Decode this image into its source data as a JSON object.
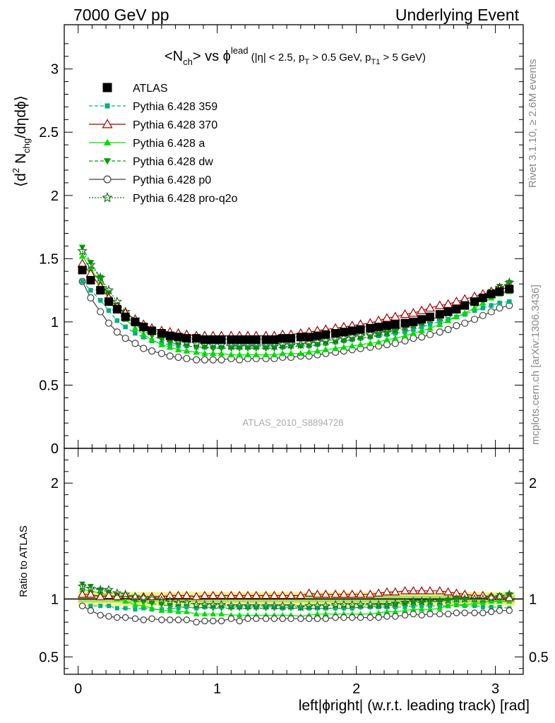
{
  "header": {
    "left": "7000 GeV pp",
    "right": "Underlying Event"
  },
  "side_labels": {
    "rivet": "Rivet 3.1.10, ≥ 2.6M events",
    "mcplots": "mcplots.cern.ch [arXiv:1306.3436]"
  },
  "watermark": "ATLAS_2010_S8894728",
  "title": {
    "a": "<N",
    "a_sub": "ch",
    "b": "> vs ϕ",
    "b_sup": "lead",
    "c": " (|η| < 2.5, p",
    "c_sub": "T",
    "d": " > 0.5 GeV, p",
    "d_sub": "T1",
    "e": " > 5 GeV)"
  },
  "ylabel_main": {
    "a": "⟨d",
    "sup": "2",
    "b": " N",
    "sub": "chg",
    "c": "/dηdϕ⟩"
  },
  "ylabel_ratio": "Ratio to ATLAS",
  "xlabel": "left|ϕright| (w.r.t. leading track) [rad]",
  "chart_data": {
    "type": "line",
    "x": [
      0.03,
      0.09,
      0.16,
      0.22,
      0.28,
      0.34,
      0.41,
      0.47,
      0.53,
      0.6,
      0.66,
      0.72,
      0.78,
      0.85,
      0.91,
      0.97,
      1.03,
      1.1,
      1.16,
      1.22,
      1.28,
      1.35,
      1.41,
      1.47,
      1.53,
      1.6,
      1.66,
      1.72,
      1.78,
      1.85,
      1.91,
      1.97,
      2.03,
      2.1,
      2.16,
      2.22,
      2.28,
      2.35,
      2.41,
      2.47,
      2.53,
      2.6,
      2.66,
      2.72,
      2.78,
      2.85,
      2.91,
      2.97,
      3.03,
      3.1
    ],
    "xlim": [
      -0.1,
      3.2
    ],
    "xticks": [
      "0",
      "1",
      "2",
      "3"
    ],
    "main": {
      "ylim": [
        0,
        3.35
      ],
      "yticks": [
        "0",
        "0.5",
        "1",
        "1.5",
        "2",
        "2.5",
        "3"
      ],
      "series": [
        {
          "name": "ATLAS",
          "color": "#000000",
          "marker": "square-filled",
          "style": "none",
          "values": [
            1.41,
            1.33,
            1.25,
            1.16,
            1.1,
            1.04,
            1.0,
            0.96,
            0.93,
            0.91,
            0.89,
            0.88,
            0.87,
            0.87,
            0.86,
            0.86,
            0.86,
            0.86,
            0.86,
            0.86,
            0.86,
            0.86,
            0.86,
            0.87,
            0.87,
            0.88,
            0.88,
            0.89,
            0.9,
            0.91,
            0.92,
            0.93,
            0.94,
            0.95,
            0.96,
            0.97,
            0.98,
            0.99,
            1.0,
            1.02,
            1.04,
            1.06,
            1.08,
            1.1,
            1.13,
            1.16,
            1.19,
            1.22,
            1.24,
            1.26
          ]
        },
        {
          "name": "Pythia 6.428 359",
          "color": "#00b080",
          "marker": "square-small",
          "style": "dashed",
          "values": [
            1.32,
            1.25,
            1.17,
            1.09,
            1.01,
            0.96,
            0.91,
            0.88,
            0.85,
            0.83,
            0.82,
            0.81,
            0.81,
            0.8,
            0.8,
            0.8,
            0.8,
            0.8,
            0.8,
            0.8,
            0.8,
            0.8,
            0.8,
            0.8,
            0.81,
            0.81,
            0.81,
            0.82,
            0.83,
            0.84,
            0.85,
            0.86,
            0.87,
            0.88,
            0.89,
            0.9,
            0.91,
            0.92,
            0.94,
            0.96,
            0.98,
            1.0,
            1.02,
            1.04,
            1.06,
            1.09,
            1.11,
            1.13,
            1.15,
            1.16
          ]
        },
        {
          "name": "Pythia 6.428 370",
          "color": "#a00000",
          "marker": "triangle-open",
          "style": "solid",
          "values": [
            1.46,
            1.38,
            1.28,
            1.19,
            1.12,
            1.07,
            1.02,
            0.98,
            0.95,
            0.93,
            0.92,
            0.91,
            0.9,
            0.89,
            0.89,
            0.89,
            0.89,
            0.89,
            0.89,
            0.89,
            0.89,
            0.89,
            0.89,
            0.9,
            0.9,
            0.91,
            0.92,
            0.93,
            0.94,
            0.95,
            0.96,
            0.97,
            0.98,
            0.99,
            1.01,
            1.03,
            1.04,
            1.06,
            1.07,
            1.09,
            1.11,
            1.13,
            1.14,
            1.16,
            1.18,
            1.2,
            1.22,
            1.24,
            1.26,
            1.27
          ]
        },
        {
          "name": "Pythia 6.428 a",
          "color": "#00dd00",
          "marker": "triangle-filled",
          "style": "solid",
          "values": [
            1.52,
            1.42,
            1.31,
            1.2,
            1.1,
            1.02,
            0.95,
            0.9,
            0.86,
            0.82,
            0.8,
            0.78,
            0.77,
            0.76,
            0.75,
            0.75,
            0.75,
            0.74,
            0.74,
            0.74,
            0.74,
            0.74,
            0.74,
            0.75,
            0.75,
            0.75,
            0.76,
            0.77,
            0.78,
            0.79,
            0.8,
            0.81,
            0.82,
            0.83,
            0.84,
            0.86,
            0.87,
            0.89,
            0.91,
            0.93,
            0.95,
            0.98,
            1.01,
            1.04,
            1.07,
            1.11,
            1.15,
            1.19,
            1.22,
            1.24
          ]
        },
        {
          "name": "Pythia 6.428 dw",
          "color": "#00a000",
          "marker": "triangle-down-filled",
          "style": "dashed",
          "values": [
            1.59,
            1.47,
            1.35,
            1.23,
            1.13,
            1.05,
            0.98,
            0.93,
            0.89,
            0.86,
            0.84,
            0.82,
            0.81,
            0.8,
            0.8,
            0.79,
            0.79,
            0.79,
            0.79,
            0.79,
            0.79,
            0.79,
            0.79,
            0.8,
            0.8,
            0.81,
            0.81,
            0.82,
            0.83,
            0.84,
            0.85,
            0.86,
            0.87,
            0.88,
            0.9,
            0.91,
            0.93,
            0.95,
            0.97,
            0.99,
            1.02,
            1.04,
            1.07,
            1.1,
            1.13,
            1.17,
            1.2,
            1.24,
            1.28,
            1.31
          ]
        },
        {
          "name": "Pythia 6.428 p0",
          "color": "#404040",
          "marker": "circle-open",
          "style": "solid",
          "values": [
            1.32,
            1.19,
            1.08,
            0.99,
            0.92,
            0.87,
            0.83,
            0.79,
            0.77,
            0.75,
            0.73,
            0.72,
            0.71,
            0.7,
            0.7,
            0.7,
            0.7,
            0.71,
            0.7,
            0.71,
            0.71,
            0.71,
            0.71,
            0.72,
            0.72,
            0.73,
            0.73,
            0.74,
            0.75,
            0.76,
            0.77,
            0.78,
            0.79,
            0.8,
            0.81,
            0.82,
            0.83,
            0.85,
            0.87,
            0.88,
            0.9,
            0.92,
            0.94,
            0.97,
            0.99,
            1.02,
            1.05,
            1.08,
            1.11,
            1.13
          ]
        },
        {
          "name": "Pythia 6.428 pro-q2o",
          "color": "#207020",
          "marker": "star-open",
          "style": "dotted",
          "values": [
            1.56,
            1.45,
            1.35,
            1.25,
            1.16,
            1.08,
            1.02,
            0.97,
            0.93,
            0.9,
            0.87,
            0.85,
            0.84,
            0.83,
            0.82,
            0.82,
            0.82,
            0.81,
            0.81,
            0.81,
            0.81,
            0.81,
            0.81,
            0.82,
            0.82,
            0.82,
            0.83,
            0.84,
            0.85,
            0.86,
            0.87,
            0.88,
            0.89,
            0.9,
            0.91,
            0.92,
            0.94,
            0.96,
            0.98,
            1.0,
            1.02,
            1.04,
            1.07,
            1.1,
            1.13,
            1.16,
            1.19,
            1.23,
            1.27,
            1.31
          ]
        }
      ]
    },
    "ratio": {
      "ylim": [
        0.35,
        2.3
      ],
      "yticks": [
        "0.5",
        "1",
        "2"
      ],
      "band": {
        "inner": 0.03,
        "outer": 0.06,
        "inner_color": "#a8e06a",
        "outer_color": "#f2f28a"
      },
      "series": [
        {
          "name": "Pythia 6.428 359",
          "values": [
            0.94,
            0.94,
            0.94,
            0.94,
            0.92,
            0.92,
            0.91,
            0.92,
            0.91,
            0.91,
            0.92,
            0.92,
            0.93,
            0.92,
            0.93,
            0.93,
            0.93,
            0.93,
            0.93,
            0.93,
            0.93,
            0.93,
            0.93,
            0.92,
            0.93,
            0.92,
            0.92,
            0.92,
            0.92,
            0.92,
            0.92,
            0.92,
            0.93,
            0.93,
            0.93,
            0.93,
            0.93,
            0.93,
            0.94,
            0.94,
            0.94,
            0.94,
            0.94,
            0.95,
            0.94,
            0.94,
            0.93,
            0.93,
            0.93,
            0.92
          ]
        },
        {
          "name": "Pythia 6.428 370",
          "values": [
            1.04,
            1.04,
            1.02,
            1.03,
            1.02,
            1.03,
            1.02,
            1.02,
            1.02,
            1.02,
            1.03,
            1.03,
            1.03,
            1.02,
            1.03,
            1.03,
            1.03,
            1.03,
            1.03,
            1.03,
            1.03,
            1.03,
            1.03,
            1.03,
            1.03,
            1.03,
            1.05,
            1.04,
            1.04,
            1.04,
            1.04,
            1.04,
            1.04,
            1.04,
            1.05,
            1.06,
            1.06,
            1.07,
            1.07,
            1.07,
            1.07,
            1.07,
            1.06,
            1.05,
            1.04,
            1.03,
            1.03,
            1.02,
            1.02,
            1.01
          ]
        },
        {
          "name": "Pythia 6.428 a",
          "values": [
            1.08,
            1.07,
            1.05,
            1.03,
            1.0,
            0.98,
            0.95,
            0.94,
            0.92,
            0.9,
            0.9,
            0.89,
            0.89,
            0.87,
            0.87,
            0.87,
            0.87,
            0.86,
            0.86,
            0.86,
            0.86,
            0.86,
            0.86,
            0.86,
            0.86,
            0.85,
            0.86,
            0.87,
            0.87,
            0.87,
            0.87,
            0.87,
            0.87,
            0.87,
            0.88,
            0.89,
            0.89,
            0.9,
            0.91,
            0.91,
            0.91,
            0.92,
            0.94,
            0.95,
            0.95,
            0.96,
            0.97,
            0.98,
            0.98,
            0.98
          ]
        },
        {
          "name": "Pythia 6.428 dw",
          "values": [
            1.13,
            1.11,
            1.08,
            1.06,
            1.03,
            1.01,
            0.98,
            0.97,
            0.96,
            0.95,
            0.94,
            0.93,
            0.93,
            0.92,
            0.93,
            0.92,
            0.92,
            0.92,
            0.92,
            0.92,
            0.92,
            0.92,
            0.92,
            0.92,
            0.92,
            0.92,
            0.92,
            0.92,
            0.92,
            0.92,
            0.92,
            0.92,
            0.93,
            0.93,
            0.94,
            0.94,
            0.95,
            0.96,
            0.97,
            0.97,
            0.98,
            0.98,
            0.99,
            1.0,
            1.0,
            1.01,
            1.01,
            1.02,
            1.03,
            1.04
          ]
        },
        {
          "name": "Pythia 6.428 p0",
          "values": [
            0.94,
            0.9,
            0.86,
            0.85,
            0.84,
            0.84,
            0.83,
            0.82,
            0.83,
            0.82,
            0.82,
            0.82,
            0.82,
            0.8,
            0.81,
            0.81,
            0.81,
            0.83,
            0.81,
            0.83,
            0.83,
            0.83,
            0.83,
            0.83,
            0.83,
            0.83,
            0.83,
            0.83,
            0.83,
            0.84,
            0.84,
            0.84,
            0.84,
            0.84,
            0.84,
            0.85,
            0.85,
            0.86,
            0.87,
            0.86,
            0.87,
            0.87,
            0.87,
            0.88,
            0.88,
            0.88,
            0.88,
            0.89,
            0.9,
            0.9
          ]
        },
        {
          "name": "Pythia 6.428 pro-q2o",
          "values": [
            1.11,
            1.09,
            1.08,
            1.08,
            1.05,
            1.04,
            1.02,
            1.01,
            1.0,
            0.99,
            0.98,
            0.97,
            0.97,
            0.95,
            0.95,
            0.95,
            0.95,
            0.94,
            0.94,
            0.94,
            0.94,
            0.94,
            0.94,
            0.94,
            0.94,
            0.93,
            0.94,
            0.94,
            0.94,
            0.95,
            0.95,
            0.95,
            0.95,
            0.95,
            0.95,
            0.95,
            0.96,
            0.97,
            0.98,
            0.98,
            0.98,
            0.98,
            0.99,
            1.0,
            1.0,
            1.0,
            1.0,
            1.01,
            1.02,
            1.04
          ]
        }
      ]
    }
  }
}
